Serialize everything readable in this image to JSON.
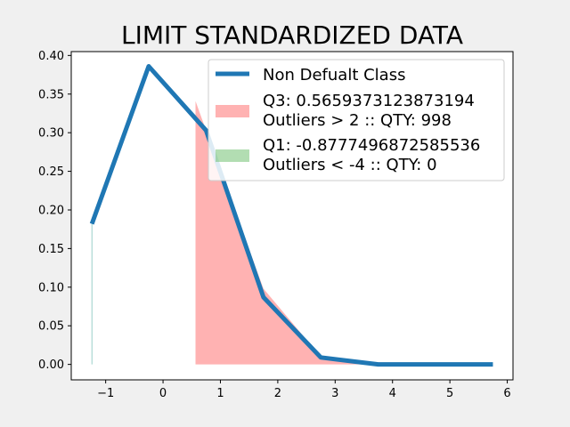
{
  "chart_data": {
    "type": "line",
    "title": "LIMIT STANDARDIZED DATA",
    "xlabel": "",
    "ylabel": "",
    "xlim": [
      -1.6,
      6.1
    ],
    "ylim": [
      -0.02,
      0.405
    ],
    "xticks": [
      -1,
      0,
      1,
      2,
      3,
      4,
      5,
      6
    ],
    "yticks": [
      0.0,
      0.05,
      0.1,
      0.15,
      0.2,
      0.25,
      0.3,
      0.35,
      0.4
    ],
    "xtick_labels": [
      "−1",
      "0",
      "1",
      "2",
      "3",
      "4",
      "5",
      "6"
    ],
    "ytick_labels": [
      "0.00",
      "0.05",
      "0.10",
      "0.15",
      "0.20",
      "0.25",
      "0.30",
      "0.35",
      "0.40"
    ],
    "grid": false,
    "legend_position": "upper-right",
    "series": [
      {
        "name": "Non Defualt Class",
        "color": "#1f77b4",
        "x": [
          -1.24,
          -0.25,
          0.75,
          1.75,
          2.75,
          3.75,
          4.75,
          5.75
        ],
        "y": [
          0.182,
          0.386,
          0.303,
          0.087,
          0.009,
          0.0,
          0.0,
          0.0
        ]
      }
    ],
    "fills": [
      {
        "legend": [
          "Q3: 0.5659373123873194",
          "Outliers > 2 :: QTY: 998"
        ],
        "color": "#ff6666",
        "alpha": 0.5,
        "x": [
          0.566,
          0.75,
          1.75,
          2.75,
          3.75
        ],
        "y": [
          0.341,
          0.303,
          0.098,
          0.01,
          0.0
        ]
      },
      {
        "legend": [
          "Q1: -0.8777496872585536",
          "Outliers < -4 :: QTY: 0"
        ],
        "color": "#66bb66",
        "alpha": 0.5,
        "x": [],
        "y": []
      }
    ],
    "vline": {
      "x": -1.24,
      "y0": 0.0,
      "y1": 0.182,
      "color": "#2a9d8f"
    }
  }
}
